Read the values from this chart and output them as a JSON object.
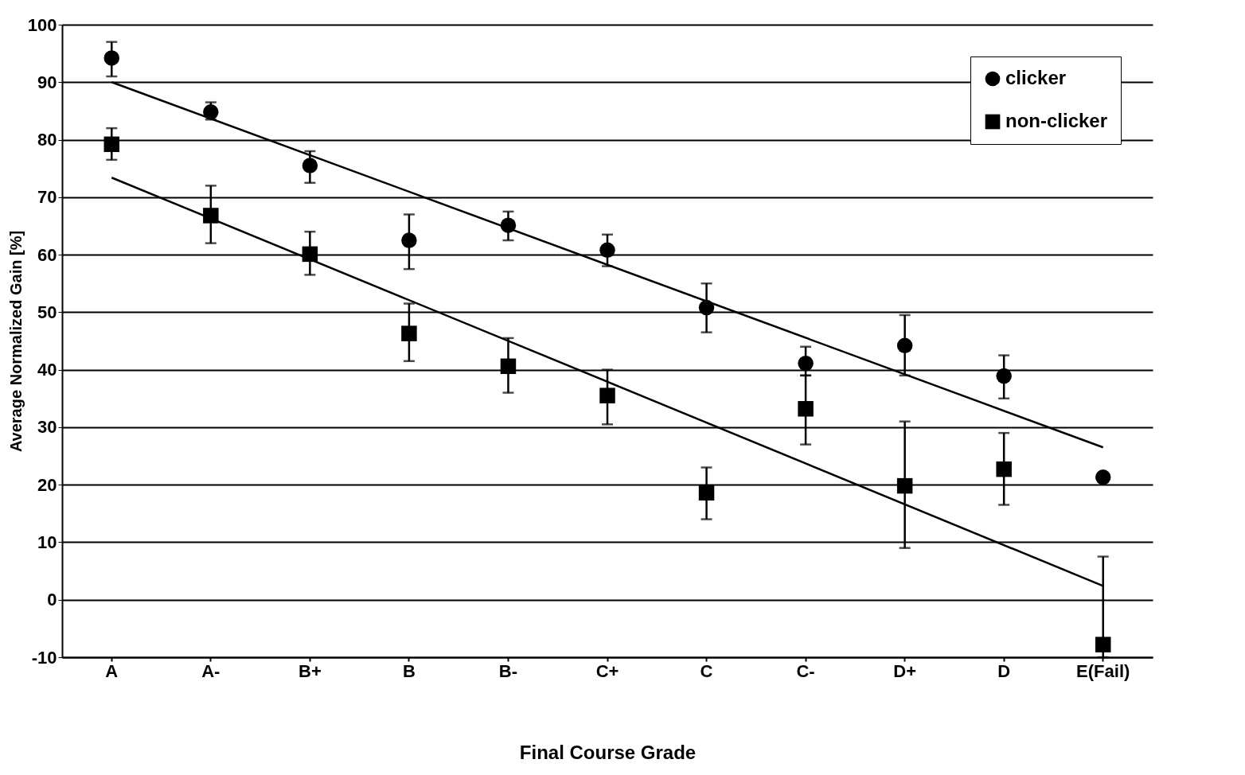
{
  "chart_data": {
    "type": "scatter",
    "xlabel": "Final Course Grade",
    "ylabel": "Average Normalized Gain [%]",
    "categories": [
      "A",
      "A-",
      "B+",
      "B",
      "B-",
      "C+",
      "C",
      "C-",
      "D+",
      "D",
      "E(Fail)"
    ],
    "ylim": [
      -10,
      100
    ],
    "yticks": [
      -10,
      0,
      10,
      20,
      30,
      40,
      50,
      60,
      70,
      80,
      90,
      100
    ],
    "grid": "y",
    "legend": "top right",
    "series": [
      {
        "name": "clicker",
        "type": "scatter",
        "marker": "circle",
        "color": "#000000",
        "values": [
          94.2,
          84.8,
          75.5,
          62.5,
          65.1,
          60.8,
          50.8,
          41.1,
          44.2,
          38.9,
          21.3
        ],
        "errors": [
          [
            91,
            97
          ],
          [
            83.5,
            86.5
          ],
          [
            72.5,
            78
          ],
          [
            57.5,
            67
          ],
          [
            62.5,
            67.5
          ],
          [
            58,
            63.5
          ],
          [
            46.5,
            55
          ],
          [
            39,
            44
          ],
          [
            39,
            49.5
          ],
          [
            35,
            42.5
          ],
          null
        ]
      },
      {
        "name": "non-clicker",
        "type": "scatter",
        "marker": "square",
        "color": "#000000",
        "values": [
          79.2,
          66.8,
          60.1,
          46.3,
          40.6,
          35.5,
          18.6,
          33.2,
          19.8,
          22.7,
          -7.8
        ],
        "errors": [
          [
            76.5,
            82
          ],
          [
            62,
            72
          ],
          [
            56.5,
            64
          ],
          [
            41.5,
            51.5
          ],
          [
            36,
            45.5
          ],
          [
            30.5,
            40
          ],
          [
            14,
            23
          ],
          [
            27,
            39
          ],
          [
            9,
            31
          ],
          [
            16.5,
            29
          ],
          [
            -10,
            7.5
          ]
        ]
      },
      {
        "type": "line",
        "color": "#000000",
        "x": [
          "A",
          "E(Fail)"
        ],
        "values": [
          90,
          26.5
        ]
      },
      {
        "type": "line",
        "color": "#000000",
        "x": [
          "A",
          "E(Fail)"
        ],
        "values": [
          73.4,
          2.4
        ]
      }
    ]
  }
}
